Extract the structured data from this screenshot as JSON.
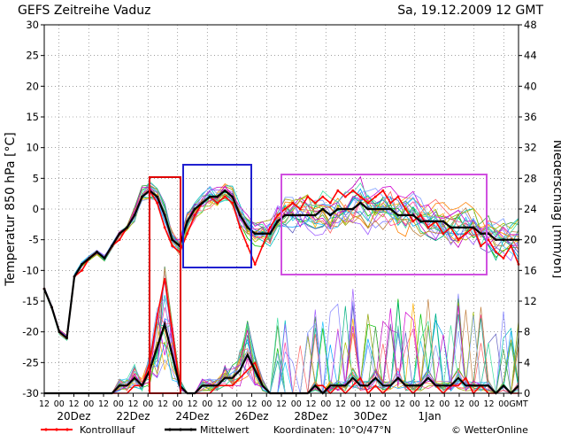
{
  "header": {
    "title": "GEFS  Zeitreihe Vaduz",
    "date": "Sa, 19.12.2009  12 GMT"
  },
  "chart_data": {
    "type": "line",
    "title": "GEFS  Zeitreihe Vaduz",
    "ylabel": "Temperatur 850 hPa [°C]",
    "y2label": "Niederschlag [mm/6h]",
    "ylim": [
      -30,
      30
    ],
    "y2lim": [
      0,
      48
    ],
    "yticks": [
      -30,
      -25,
      -20,
      -15,
      -10,
      -5,
      0,
      5,
      10,
      15,
      20,
      25,
      30
    ],
    "y2ticks": [
      0,
      4,
      8,
      12,
      16,
      20,
      24,
      28,
      32,
      36,
      40,
      44,
      48
    ],
    "hour_ticks": [
      "12",
      "00",
      "12",
      "00",
      "12",
      "00",
      "12",
      "00",
      "12",
      "00",
      "12",
      "00",
      "12",
      "00",
      "12",
      "00",
      "12",
      "00",
      "12",
      "00",
      "12",
      "00",
      "12",
      "00",
      "12",
      "00",
      "12",
      "00",
      "12",
      "00",
      "12",
      "00",
      "GMT"
    ],
    "day_labels": [
      "20Dez",
      "22Dez",
      "24Dez",
      "26Dez",
      "28Dez",
      "30Dez",
      "1Jan"
    ],
    "grid": true,
    "legend": {
      "position": "bottom",
      "items": [
        {
          "label": "Kontrolllauf",
          "color": "#ff0000"
        },
        {
          "label": "Mittelwert",
          "color": "#000000"
        }
      ],
      "coordinates": "Koordinaten: 10°O/47°N",
      "copyright": "© WetterOnline"
    },
    "x_step_hours": 6,
    "series": [
      {
        "name": "Mittelwert",
        "color": "#000000",
        "values": [
          -13,
          -16,
          -20,
          -21,
          -11,
          -9,
          -8,
          -7,
          -8,
          -6,
          -4,
          -3,
          -1,
          2,
          3,
          2,
          -1,
          -5,
          -6,
          -2,
          0,
          1,
          2,
          2,
          3,
          2,
          -1,
          -3,
          -4,
          -4,
          -4,
          -2,
          -1,
          -1,
          -1,
          -1,
          -1,
          0,
          -1,
          0,
          0,
          0,
          1,
          0,
          0,
          0,
          0,
          -1,
          -1,
          -1,
          -2,
          -2,
          -2,
          -2,
          -3,
          -3,
          -3,
          -3,
          -4,
          -4,
          -5,
          -5,
          -5,
          -5
        ]
      },
      {
        "name": "Kontrolllauf",
        "color": "#ff0000",
        "values": [
          -13,
          -16,
          -20,
          -21,
          -11,
          -10,
          -8,
          -7,
          -8,
          -6,
          -5,
          -3,
          -1,
          2,
          3,
          1,
          -3,
          -6,
          -7,
          -4,
          -1,
          1,
          2,
          1,
          2,
          1,
          -3,
          -6,
          -9,
          -6,
          -3,
          -1,
          0,
          1,
          0,
          2,
          1,
          2,
          1,
          3,
          2,
          3,
          2,
          1,
          2,
          3,
          1,
          2,
          0,
          -2,
          -1,
          -3,
          -2,
          -4,
          -3,
          -5,
          -4,
          -3,
          -6,
          -5,
          -7,
          -8,
          -6,
          -9
        ]
      }
    ],
    "precip_series": [
      {
        "name": "Mittelwert",
        "color": "#000000",
        "values": [
          0,
          0,
          0,
          0,
          0,
          0,
          0,
          0,
          0,
          0,
          1,
          1,
          2,
          1,
          3,
          6,
          9,
          5,
          1,
          0,
          0,
          1,
          1,
          1,
          2,
          2,
          3,
          5,
          3,
          1,
          0,
          0,
          0,
          0,
          0,
          0,
          1,
          0,
          1,
          1,
          1,
          2,
          1,
          1,
          2,
          1,
          1,
          2,
          1,
          1,
          1,
          2,
          1,
          1,
          1,
          2,
          1,
          1,
          1,
          1,
          0,
          1,
          0,
          1
        ]
      },
      {
        "name": "Kontrolllauf",
        "color": "#ff0000",
        "values": [
          0,
          0,
          0,
          0,
          0,
          0,
          0,
          0,
          0,
          0,
          0,
          0,
          1,
          1,
          4,
          10,
          15,
          8,
          1,
          0,
          0,
          0,
          0,
          1,
          1,
          1,
          2,
          3,
          4,
          1,
          0,
          0,
          0,
          0,
          0,
          0,
          1,
          1,
          0,
          1,
          0,
          1,
          2,
          0,
          1,
          0,
          1,
          2,
          1,
          0,
          1,
          2,
          1,
          0,
          1,
          1,
          2,
          0,
          1,
          0,
          0,
          1,
          0,
          0
        ]
      }
    ],
    "highlights": [
      {
        "color": "#e00000"
      },
      {
        "color": "#2020d0"
      },
      {
        "color": "#d050e0"
      }
    ]
  }
}
